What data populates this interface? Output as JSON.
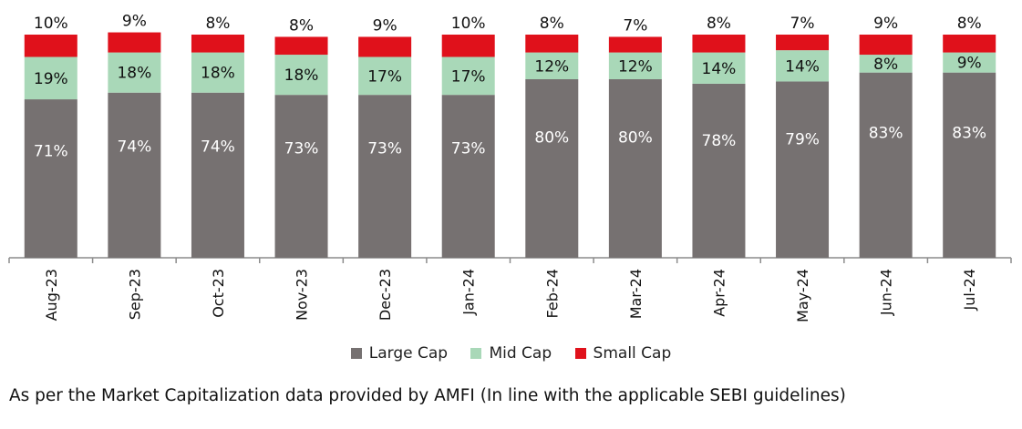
{
  "chart_data": {
    "type": "bar",
    "stacked": true,
    "percent": true,
    "categories": [
      "Aug-23",
      "Sep-23",
      "Oct-23",
      "Nov-23",
      "Dec-23",
      "Jan-24",
      "Feb-24",
      "Mar-24",
      "Apr-24",
      "May-24",
      "Jun-24",
      "Jul-24"
    ],
    "series": [
      {
        "name": "Large Cap",
        "color": "#767171",
        "values": [
          71,
          74,
          74,
          73,
          73,
          73,
          80,
          80,
          78,
          79,
          83,
          83
        ]
      },
      {
        "name": "Mid Cap",
        "color": "#A9D8B8",
        "values": [
          19,
          18,
          18,
          18,
          17,
          17,
          12,
          12,
          14,
          14,
          8,
          9
        ]
      },
      {
        "name": "Small Cap",
        "color": "#E0111B",
        "values": [
          10,
          9,
          8,
          8,
          9,
          10,
          8,
          7,
          8,
          7,
          9,
          8
        ]
      }
    ],
    "value_suffix": "%",
    "ylim": [
      0,
      100
    ],
    "legend_position": "bottom",
    "grid": false
  },
  "footnote": "As per the Market Capitalization data provided by AMFI (In line with the applicable SEBI guidelines)"
}
